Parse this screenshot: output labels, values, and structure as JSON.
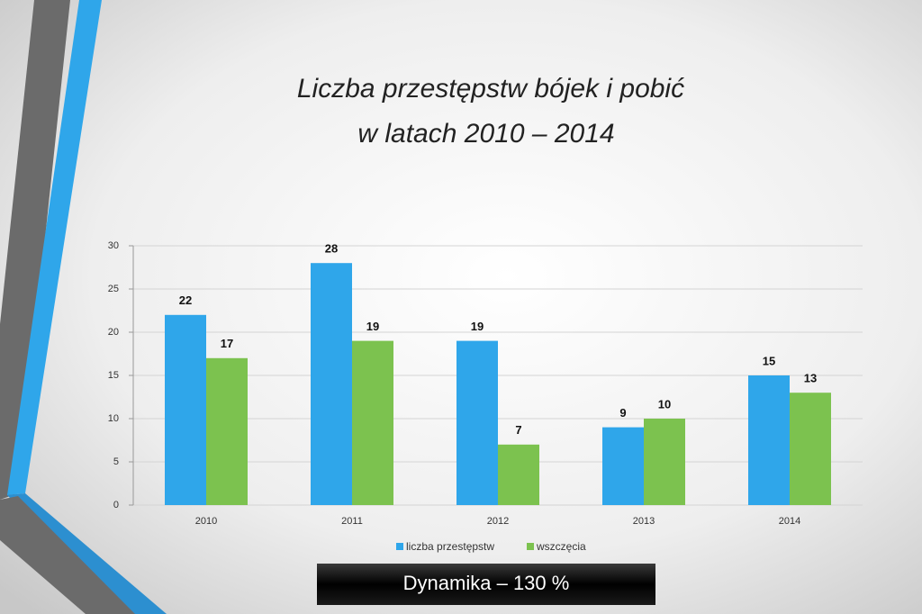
{
  "chart_data": {
    "type": "bar",
    "title": [
      "Liczba przestępstw bójek i pobić",
      "w latach 2010 – 2014"
    ],
    "categories": [
      "2010",
      "2011",
      "2012",
      "2013",
      "2014"
    ],
    "series": [
      {
        "name": "liczba przestępstw",
        "color": "#2fa6ea",
        "values": [
          22,
          28,
          19,
          9,
          15
        ]
      },
      {
        "name": "wszczęcia",
        "color": "#7cc24f",
        "values": [
          17,
          19,
          7,
          10,
          13
        ]
      }
    ],
    "ylim": [
      0,
      30
    ],
    "yticks": [
      0,
      5,
      10,
      15,
      20,
      25,
      30
    ],
    "grid": true,
    "legend": "bottom",
    "annotation": "Dynamika – 130 %"
  }
}
